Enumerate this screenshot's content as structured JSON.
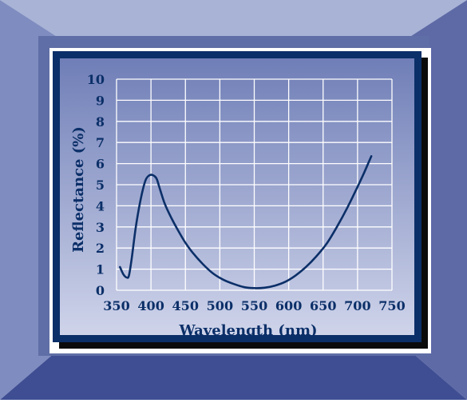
{
  "colors": {
    "bevel_top": "#a9b3d6",
    "bevel_left": "#7f8cc0",
    "bevel_right": "#5d6aa6",
    "bevel_bottom": "#3f4e93",
    "outer_mat": "#5f6ea6",
    "white_border": "#ffffff",
    "shadow": "#0b0b0b",
    "navy_border": "#0b2f68",
    "panel_top": "#6f7eb7",
    "panel_bottom": "#cfd4ea",
    "text": "#0b2f68",
    "grid": "#ffffff",
    "curve": "#0b2f68"
  },
  "chart_data": {
    "type": "line",
    "title": "",
    "xlabel": "Wavelength (nm)",
    "ylabel": "Reflectance (%)",
    "xlim": [
      350,
      750
    ],
    "ylim": [
      0,
      10
    ],
    "x_ticks": [
      350,
      400,
      450,
      500,
      550,
      600,
      650,
      700,
      750
    ],
    "y_ticks": [
      0,
      1,
      2,
      3,
      4,
      5,
      6,
      7,
      8,
      9,
      10
    ],
    "grid": true,
    "series": [
      {
        "x": [
          355,
          360,
          365,
          368,
          372,
          378,
          385,
          392,
          398,
          403,
          408,
          412,
          420,
          430,
          440,
          450,
          460,
          475,
          490,
          505,
          520,
          535,
          550,
          565,
          580,
          595,
          610,
          625,
          640,
          655,
          670,
          685,
          700,
          710,
          720
        ],
        "y": [
          1.1,
          0.75,
          0.6,
          0.7,
          1.5,
          3.0,
          4.3,
          5.2,
          5.45,
          5.45,
          5.3,
          4.9,
          4.1,
          3.4,
          2.8,
          2.25,
          1.8,
          1.25,
          0.8,
          0.5,
          0.3,
          0.15,
          0.1,
          0.12,
          0.22,
          0.4,
          0.7,
          1.1,
          1.6,
          2.2,
          3.0,
          3.9,
          4.9,
          5.6,
          6.35
        ]
      }
    ]
  }
}
